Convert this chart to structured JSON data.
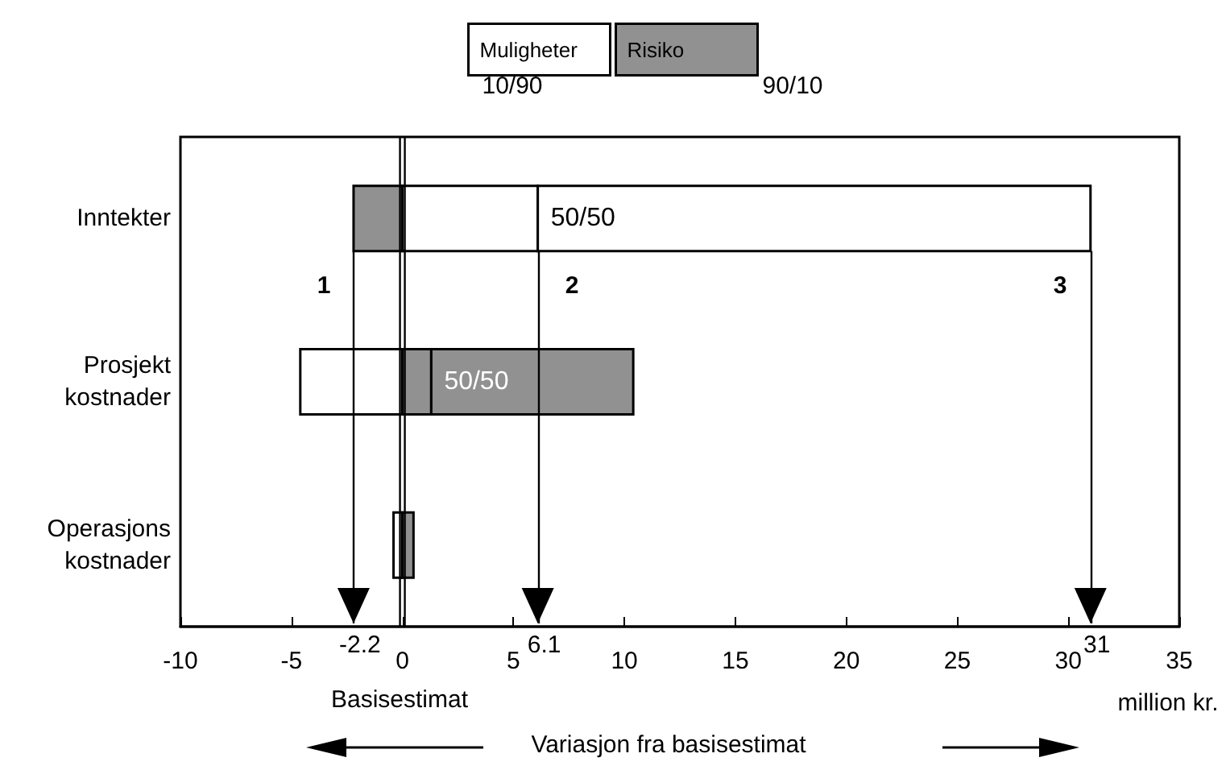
{
  "chart_data": {
    "type": "bar",
    "orientation": "horizontal",
    "categories": [
      "Inntekter",
      "Prosjekt\nkostnader",
      "Operasjons\nkostnader"
    ],
    "series": [
      {
        "name": "Muligheter",
        "color": "#ffffff",
        "base": [
          0,
          -4.6,
          -0.4
        ],
        "values": [
          6.1,
          4.6,
          0.4
        ]
      },
      {
        "name": "Risiko",
        "color": "#919191",
        "base": [
          -2.2,
          0,
          0
        ],
        "values": [
          2.2,
          1.3,
          0.5
        ]
      },
      {
        "colors": [
          "#ffffff",
          "#919191",
          null
        ],
        "base": [
          6.1,
          1.3,
          null
        ],
        "values": [
          24.9,
          9.1,
          null
        ]
      }
    ],
    "xlim": [
      -10,
      35
    ],
    "xticks": [
      -10,
      -5,
      0,
      5,
      10,
      15,
      20,
      25,
      30,
      35
    ],
    "xlabel": "Variasjon fra basisestimat",
    "ref_lines": [
      {
        "axis": "x",
        "value": 0,
        "color": "#000000"
      },
      {
        "axis": "x",
        "value": -2.2,
        "label": "-2.2",
        "color": "#000000"
      },
      {
        "axis": "x",
        "value": 6.1,
        "label": "6.1",
        "color": "#000000"
      },
      {
        "axis": "x",
        "value": 31,
        "label": "31",
        "color": "#000000"
      }
    ],
    "annotations": [
      "10/90",
      "90/10",
      "million kr.",
      "Basisestimat",
      "1",
      "2",
      "3",
      {
        "text": "50/50",
        "x": 6.1,
        "y": "Inntekter"
      },
      {
        "text": "50/50",
        "x": 1.3,
        "y": "Prosjekt\nkostnader"
      }
    ],
    "legend": "top",
    "grid": false
  }
}
